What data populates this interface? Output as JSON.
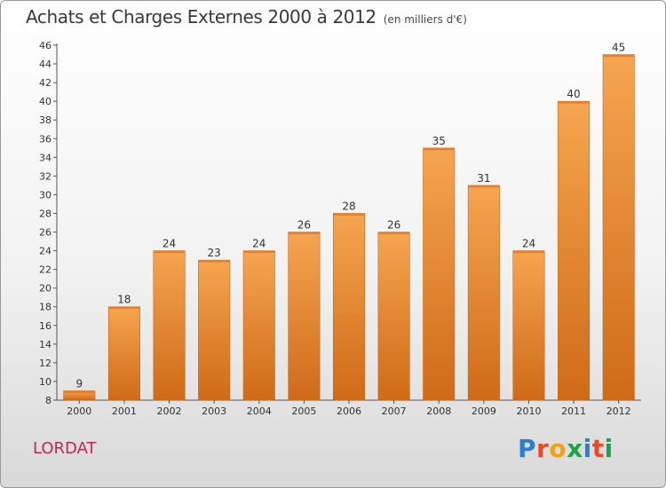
{
  "header": {
    "title": "Achats et Charges Externes 2000 à 2012",
    "unit": "(en milliers d'€)"
  },
  "footer": {
    "place": "LORDAT",
    "logo_text": "Proxiti",
    "logo_colors": [
      "#2a7fd4",
      "#e8492a",
      "#f2a20c",
      "#1aa34a",
      "#2a7fd4",
      "#e8492a",
      "#1aa34a"
    ]
  },
  "chart_data": {
    "type": "bar",
    "title": "Achats et Charges Externes 2000 à 2012",
    "subtitle": "(en milliers d'€)",
    "xlabel": "",
    "ylabel": "",
    "categories": [
      "2000",
      "2001",
      "2002",
      "2003",
      "2004",
      "2005",
      "2006",
      "2007",
      "2008",
      "2009",
      "2010",
      "2011",
      "2012"
    ],
    "values": [
      9,
      18,
      24,
      23,
      24,
      26,
      28,
      26,
      35,
      31,
      24,
      40,
      45
    ],
    "ylim": [
      8,
      46
    ],
    "yticks": [
      8,
      10,
      12,
      14,
      16,
      18,
      20,
      22,
      24,
      26,
      28,
      30,
      32,
      34,
      36,
      38,
      40,
      42,
      44,
      46
    ],
    "grid": false,
    "bar_color_top": "#f6a550",
    "bar_color_bottom": "#cf6a18",
    "show_data_labels": true
  }
}
